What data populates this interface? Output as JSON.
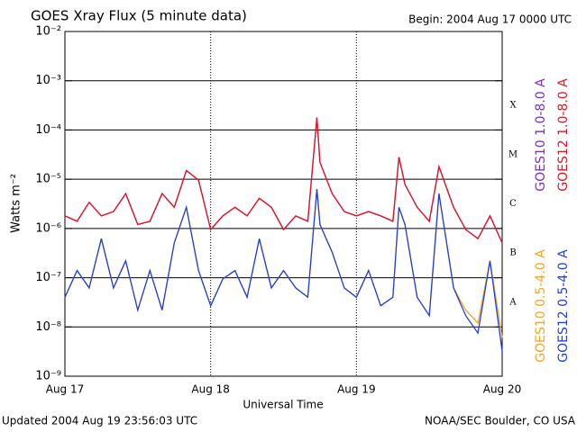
{
  "chart_data": {
    "type": "line",
    "title": "GOES Xray Flux (5 minute data)",
    "subtitle": "Begin:  2004 Aug 17 0000 UTC",
    "xlabel": "Universal Time",
    "ylabel": "Watts m⁻²",
    "footer_left": "Updated 2004 Aug 19 23:56:03 UTC",
    "footer_right": "NOAA/SEC Boulder, CO USA",
    "log_y": true,
    "grid": true,
    "legend": "right",
    "x": [
      0,
      2,
      4,
      6,
      8,
      10,
      12,
      14,
      16,
      18,
      20,
      22,
      24,
      26,
      28,
      30,
      32,
      34,
      36,
      38,
      40,
      41.5,
      42,
      44,
      46,
      48,
      50,
      52,
      54,
      55,
      56,
      58,
      60,
      61.6,
      64,
      66,
      68,
      70,
      72
    ],
    "xlim": [
      0,
      72
    ],
    "xticks": [
      {
        "value": 0,
        "label": "Aug 17"
      },
      {
        "value": 24,
        "label": "Aug 18"
      },
      {
        "value": 48,
        "label": "Aug 19"
      },
      {
        "value": 72,
        "label": "Aug 20"
      }
    ],
    "ylim": [
      1e-09,
      0.01
    ],
    "yticks": [
      {
        "value": 0.01,
        "label": "10⁻²"
      },
      {
        "value": 0.001,
        "label": "10⁻³"
      },
      {
        "value": 0.0001,
        "label": "10⁻⁴"
      },
      {
        "value": 1e-05,
        "label": "10⁻⁵"
      },
      {
        "value": 1e-06,
        "label": "10⁻⁶"
      },
      {
        "value": 1e-07,
        "label": "10⁻⁷"
      },
      {
        "value": 1e-08,
        "label": "10⁻⁸"
      },
      {
        "value": 1e-09,
        "label": "10⁻⁹"
      }
    ],
    "flare_classes": [
      {
        "value": 1e-08,
        "label": "A"
      },
      {
        "value": 1e-07,
        "label": "B"
      },
      {
        "value": 1e-06,
        "label": "C"
      },
      {
        "value": 1e-05,
        "label": "M"
      },
      {
        "value": 0.0001,
        "label": "X"
      }
    ],
    "series": [
      {
        "name": "GOES10 1.0-8.0 A",
        "color": "#7b2fbe",
        "values": [
          1.8e-06,
          1.4e-06,
          3.4e-06,
          1.8e-06,
          2.2e-06,
          5.1e-06,
          1.2e-06,
          1.4e-06,
          5.1e-06,
          2.7e-06,
          1.5e-05,
          9.6e-06,
          9.5e-07,
          1.8e-06,
          2.7e-06,
          1.8e-06,
          4.1e-06,
          2.7e-06,
          9.5e-07,
          1.8e-06,
          1.4e-06,
          0.00018,
          2.2e-05,
          5.1e-06,
          2.2e-06,
          1.8e-06,
          2.2e-06,
          1.8e-06,
          1.4e-06,
          2.8e-05,
          7.8e-06,
          2.7e-06,
          1.4e-06,
          1.8e-05,
          2.7e-06,
          9.5e-07,
          6.2e-07,
          1.8e-06,
          5.1e-07
        ]
      },
      {
        "name": "GOES12 1.0-8.0 A",
        "color": "#e8121e",
        "values": [
          1.8e-06,
          1.4e-06,
          3.4e-06,
          1.8e-06,
          2.2e-06,
          5.1e-06,
          1.2e-06,
          1.4e-06,
          5.1e-06,
          2.7e-06,
          1.5e-05,
          9.6e-06,
          9.5e-07,
          1.8e-06,
          2.7e-06,
          1.8e-06,
          4.1e-06,
          2.7e-06,
          9.5e-07,
          1.8e-06,
          1.4e-06,
          0.00018,
          2.2e-05,
          5.1e-06,
          2.2e-06,
          1.8e-06,
          2.2e-06,
          1.8e-06,
          1.4e-06,
          2.8e-05,
          7.8e-06,
          2.7e-06,
          1.4e-06,
          1.8e-05,
          2.7e-06,
          9.5e-07,
          6.2e-07,
          1.8e-06,
          5.1e-07
        ]
      },
      {
        "name": "GOES10 0.5-4.0 A",
        "color": "#f5a623",
        "values": [
          4e-08,
          1.4e-07,
          6.2e-08,
          6.2e-07,
          6.2e-08,
          2.2e-07,
          2.2e-08,
          1.4e-07,
          2.2e-08,
          5.1e-07,
          2.7e-06,
          1.4e-07,
          2.7e-08,
          9.4e-08,
          1.4e-07,
          4e-08,
          6.2e-07,
          6.2e-08,
          1.4e-07,
          6.2e-08,
          4e-08,
          6.3e-06,
          1.2e-06,
          3.3e-07,
          6.2e-08,
          4e-08,
          1.4e-07,
          2.7e-08,
          4e-08,
          2.7e-06,
          1.2e-06,
          4e-08,
          1.7e-08,
          5.1e-06,
          6.2e-08,
          2.2e-08,
          1.2e-08,
          2.2e-07,
          6e-09
        ]
      },
      {
        "name": "GOES12 0.5-4.0 A",
        "color": "#1f3fe0",
        "values": [
          4e-08,
          1.4e-07,
          6.2e-08,
          6.2e-07,
          6.2e-08,
          2.2e-07,
          2.2e-08,
          1.4e-07,
          2.2e-08,
          5.1e-07,
          2.7e-06,
          1.4e-07,
          2.7e-08,
          9.4e-08,
          1.4e-07,
          4e-08,
          6.2e-07,
          6.2e-08,
          1.4e-07,
          6.2e-08,
          4e-08,
          6.3e-06,
          1.2e-06,
          3.3e-07,
          6.2e-08,
          4e-08,
          1.4e-07,
          2.7e-08,
          4e-08,
          2.7e-06,
          1.2e-06,
          4e-08,
          1.7e-08,
          5.1e-06,
          6.2e-08,
          1.7e-08,
          7.5e-09,
          2.2e-07,
          3.2e-09
        ]
      }
    ]
  }
}
